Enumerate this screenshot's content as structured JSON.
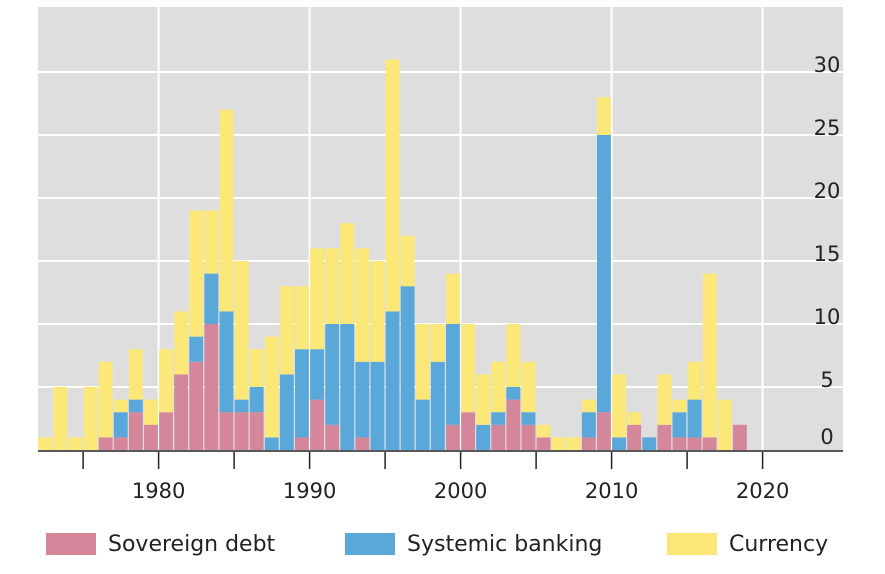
{
  "chart_data": {
    "type": "bar",
    "stacked": true,
    "x": [
      1972,
      1973,
      1974,
      1975,
      1976,
      1977,
      1978,
      1979,
      1980,
      1981,
      1982,
      1983,
      1984,
      1985,
      1986,
      1987,
      1988,
      1989,
      1990,
      1991,
      1992,
      1993,
      1994,
      1995,
      1996,
      1997,
      1998,
      1999,
      2000,
      2001,
      2002,
      2003,
      2004,
      2005,
      2006,
      2007,
      2008,
      2009,
      2010,
      2011,
      2012,
      2013,
      2014,
      2015,
      2016,
      2017,
      2018
    ],
    "series": [
      {
        "name": "Sovereign debt",
        "color": "#d4869a",
        "values": [
          0,
          0,
          0,
          0,
          1,
          1,
          3,
          2,
          3,
          6,
          7,
          10,
          3,
          3,
          3,
          0,
          0,
          1,
          4,
          2,
          0,
          1,
          0,
          0,
          0,
          0,
          0,
          2,
          3,
          0,
          2,
          4,
          2,
          1,
          0,
          0,
          1,
          3,
          0,
          2,
          0,
          2,
          1,
          1,
          1,
          0,
          2
        ]
      },
      {
        "name": "Systemic banking",
        "color": "#5aa8d9",
        "values": [
          0,
          0,
          0,
          0,
          0,
          2,
          1,
          0,
          0,
          0,
          2,
          4,
          8,
          1,
          2,
          1,
          6,
          7,
          4,
          8,
          10,
          6,
          7,
          11,
          13,
          4,
          7,
          8,
          0,
          2,
          1,
          1,
          1,
          0,
          0,
          0,
          2,
          22,
          1,
          0,
          1,
          0,
          2,
          3,
          0,
          0,
          0
        ]
      },
      {
        "name": "Currency",
        "color": "#fbe878",
        "values": [
          1,
          5,
          1,
          5,
          6,
          1,
          4,
          2,
          5,
          5,
          10,
          5,
          16,
          11,
          3,
          8,
          7,
          5,
          8,
          6,
          8,
          9,
          8,
          20,
          4,
          6,
          3,
          4,
          7,
          4,
          4,
          5,
          4,
          1,
          1,
          1,
          1,
          3,
          5,
          1,
          0,
          4,
          1,
          3,
          13,
          4,
          0
        ]
      }
    ],
    "ylim": [
      0,
      35
    ],
    "yticks": [
      0,
      5,
      10,
      15,
      20,
      25,
      30
    ],
    "xticks": [
      1980,
      1990,
      2000,
      2010,
      2020
    ],
    "xlim": [
      1972,
      2022
    ],
    "grid": true,
    "legend_position": "bottom"
  },
  "legend": [
    {
      "label": "Sovereign debt",
      "color": "#d4869a"
    },
    {
      "label": "Systemic banking",
      "color": "#5aa8d9"
    },
    {
      "label": "Currency",
      "color": "#fbe878"
    }
  ]
}
